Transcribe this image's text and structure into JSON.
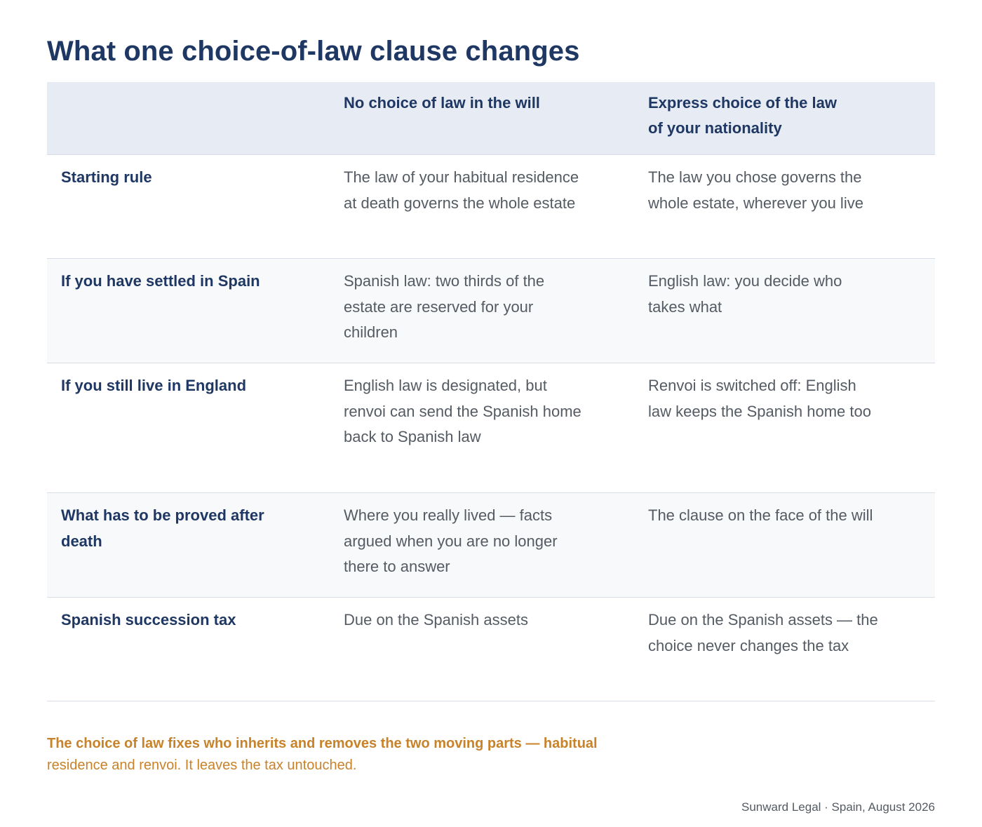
{
  "title": "What one choice-of-law clause changes",
  "table": {
    "headers": [
      "",
      "No choice of law in the will",
      "Express choice of the law of your nationality"
    ],
    "rows": [
      {
        "label": "Starting rule",
        "no_choice": "The law of your habitual residence at death governs the whole estate",
        "express_choice": "The law you chose governs the whole estate, wherever you live"
      },
      {
        "label": "If you have settled in Spain",
        "no_choice": "Spanish law: two thirds of the estate are reserved for your children",
        "express_choice": "English law: you decide who takes what"
      },
      {
        "label": "If you still live in England",
        "no_choice": "English law is designated, but renvoi can send the Spanish home back to Spanish law",
        "express_choice": "Renvoi is switched off: English law keeps the Spanish home too"
      },
      {
        "label": "What has to be proved after death",
        "no_choice": "Where you really lived — facts argued when you are no longer there to answer",
        "express_choice": "The clause on the face of the will"
      },
      {
        "label": "Spanish succession tax",
        "no_choice": "Due on the Spanish assets",
        "express_choice": "Due on the Spanish assets — the choice never changes the tax"
      }
    ]
  },
  "note": {
    "lead": "The choice of law fixes who inherits and removes the two moving parts — habitual",
    "rest": "residence and renvoi. It leaves the tax untouched."
  },
  "footer": "Sunward Legal · Spain, August 2026",
  "colors": {
    "heading": "#1f3763",
    "header_bg": "#e6ebf4",
    "alt_row_bg": "#f7f9fb",
    "body_text": "#555b63",
    "accent": "#c8822a"
  }
}
